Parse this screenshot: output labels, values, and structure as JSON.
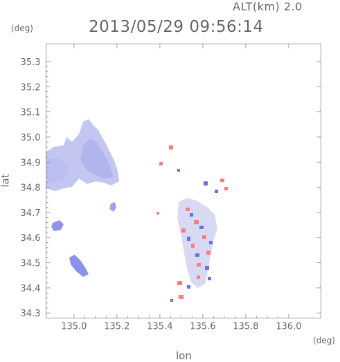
{
  "header": {
    "altitude_label": "ALT(km) 2.0",
    "timestamp": "2013/05/29 09:56:14"
  },
  "axes": {
    "x_unit": "(deg)",
    "y_unit": "(deg)",
    "x_label": "lon",
    "y_label": "lat"
  },
  "chart_data": {
    "type": "heatmap",
    "title": "2013/05/29 09:56:14",
    "xlabel": "lon",
    "ylabel": "lat",
    "xlim": [
      134.87,
      136.15
    ],
    "ylim": [
      34.28,
      35.37
    ],
    "x_ticks": [
      135.0,
      135.2,
      135.4,
      135.6,
      135.8,
      136.0
    ],
    "x_tick_labels": [
      "135.0",
      "135.2",
      "135.4",
      "135.6",
      "135.8",
      "136.0"
    ],
    "y_ticks": [
      34.3,
      34.4,
      34.5,
      34.6,
      34.7,
      34.8,
      34.9,
      35.0,
      35.1,
      35.2,
      35.3
    ],
    "y_tick_labels": [
      "34.3",
      "34.4",
      "34.5",
      "34.6",
      "34.7",
      "34.8",
      "34.9",
      "35.0",
      "35.1",
      "35.2",
      "35.3"
    ],
    "colors": {
      "negative": "#7f86e8",
      "positive": "#ff6f6f",
      "frame": "#9a9a9a"
    }
  }
}
